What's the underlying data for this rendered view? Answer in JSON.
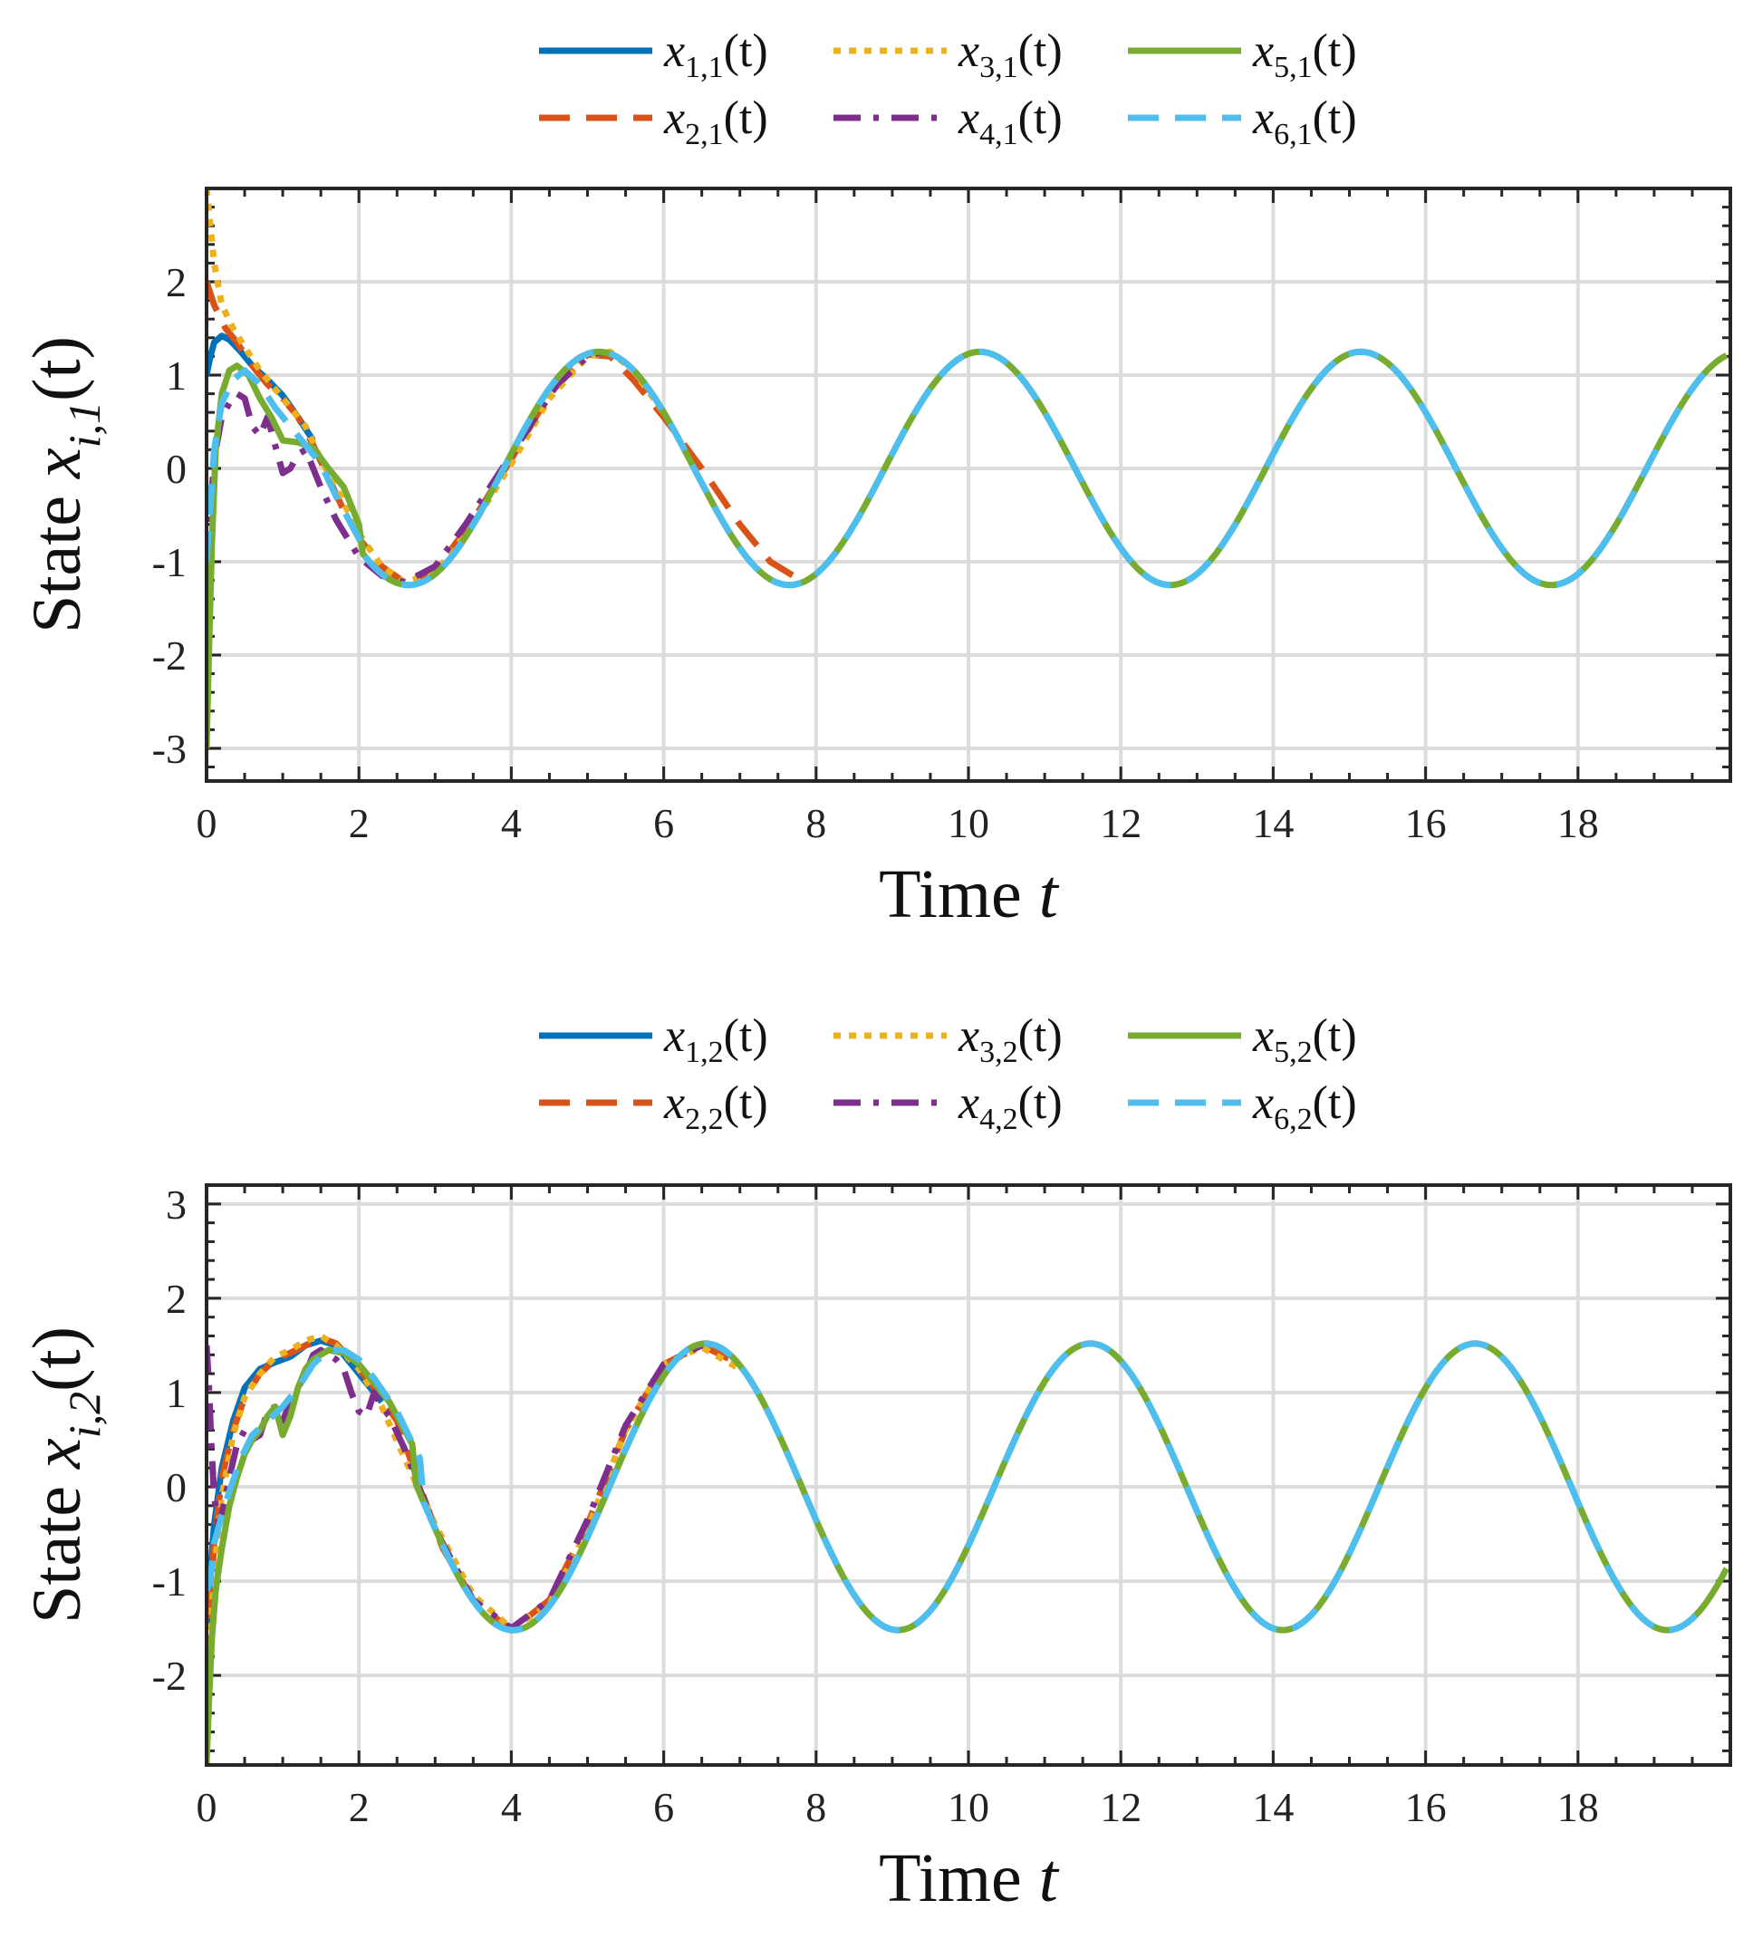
{
  "chart_data": [
    {
      "type": "line",
      "title": "",
      "xlabel": "Time",
      "xlabel_var": "t",
      "ylabel_prefix": "State ",
      "ylabel_var": "x",
      "ylabel_sub": "i,1",
      "ylabel_suffix": "(t)",
      "xlim": [
        0,
        20
      ],
      "ylim": [
        -3.35,
        3.0
      ],
      "xticks": [
        "0",
        "2",
        "4",
        "6",
        "8",
        "10",
        "12",
        "14",
        "16",
        "18"
      ],
      "yticks": [
        "-3",
        "-2",
        "-1",
        "0",
        "1",
        "2"
      ],
      "grid": true,
      "legend_position": "top-center",
      "series": [
        {
          "name": "x1,1(t)",
          "label_var": "x",
          "label_sub": "1,1",
          "label_arg": "(t)",
          "color": "#0072BD",
          "style": "solid",
          "x": [
            0,
            0.05,
            0.1,
            0.2,
            0.3,
            0.45,
            0.6,
            0.8,
            1.0,
            1.2,
            1.4
          ],
          "y": [
            1.0,
            1.2,
            1.35,
            1.42,
            1.38,
            1.25,
            1.1,
            0.95,
            0.78,
            0.55,
            0.3
          ]
        },
        {
          "name": "x2,1(t)",
          "label_var": "x",
          "label_sub": "2,1",
          "label_arg": "(t)",
          "color": "#D95319",
          "style": "dashed",
          "x": [
            0,
            0.1,
            0.25,
            0.4,
            0.6,
            0.8,
            1.0,
            1.2,
            1.4,
            1.6,
            1.8,
            2.0,
            2.3,
            2.6,
            3.0,
            3.5,
            4.0,
            4.5,
            5.0,
            5.3,
            5.6,
            6.0,
            6.5,
            7.0,
            7.4,
            7.8
          ],
          "y": [
            2.0,
            1.75,
            1.5,
            1.35,
            1.1,
            0.9,
            0.75,
            0.55,
            0.25,
            -0.1,
            -0.45,
            -0.75,
            -1.05,
            -1.22,
            -1.1,
            -0.55,
            0.1,
            0.8,
            1.22,
            1.2,
            0.95,
            0.55,
            0.0,
            -0.6,
            -1.0,
            -1.2
          ]
        },
        {
          "name": "x3,1(t)",
          "label_var": "x",
          "label_sub": "3,1",
          "label_arg": "(t)",
          "color": "#EDB120",
          "style": "dotted",
          "x": [
            0,
            0.05,
            0.1,
            0.2,
            0.35,
            0.5,
            0.7,
            0.9,
            1.1,
            1.3,
            1.5,
            1.7,
            2.0,
            2.3,
            2.6,
            3.0,
            3.5,
            4.0,
            4.5,
            5.0,
            5.3,
            5.6,
            6.0
          ],
          "y": [
            3.0,
            2.6,
            2.2,
            1.75,
            1.5,
            1.3,
            1.05,
            0.85,
            0.65,
            0.45,
            0.1,
            -0.2,
            -0.7,
            -1.05,
            -1.22,
            -1.12,
            -0.6,
            0.05,
            0.75,
            1.2,
            1.25,
            1.05,
            0.6
          ]
        },
        {
          "name": "x4,1(t)",
          "label_var": "x",
          "label_sub": "4,1",
          "label_arg": "(t)",
          "color": "#7E2F8E",
          "style": "dashdot",
          "x": [
            0,
            0.05,
            0.1,
            0.2,
            0.3,
            0.4,
            0.5,
            0.6,
            0.7,
            0.8,
            0.9,
            1.0,
            1.1,
            1.2,
            1.3,
            1.5,
            1.7,
            2.0,
            2.3,
            2.6,
            3.0,
            3.4,
            3.8,
            4.2,
            4.6,
            5.0,
            5.2
          ],
          "y": [
            -1.0,
            -0.5,
            0.1,
            0.55,
            0.7,
            0.8,
            0.75,
            0.45,
            0.35,
            0.55,
            0.25,
            -0.05,
            0.0,
            0.15,
            0.2,
            -0.2,
            -0.55,
            -0.95,
            -1.15,
            -1.22,
            -1.05,
            -0.6,
            -0.1,
            0.4,
            0.9,
            1.2,
            1.25
          ]
        }
      ],
      "common_x_start": 0,
      "common_x_end": 20,
      "common_period": 5.0,
      "common_amplitude": 1.25,
      "common_peak_time": 5.15,
      "initial_green": [
        [
          0,
          -3.0
        ],
        [
          0.03,
          -2.0
        ],
        [
          0.07,
          -0.8
        ],
        [
          0.12,
          0.2
        ],
        [
          0.2,
          0.8
        ],
        [
          0.3,
          1.05
        ],
        [
          0.4,
          1.1
        ],
        [
          0.55,
          1.0
        ],
        [
          0.7,
          0.75
        ],
        [
          0.85,
          0.55
        ],
        [
          1.0,
          0.3
        ],
        [
          1.2,
          0.28
        ],
        [
          1.4,
          0.22
        ],
        [
          1.6,
          0.0
        ],
        [
          1.8,
          -0.2
        ],
        [
          2.0,
          -0.6
        ]
      ],
      "initial_cyan": [
        [
          0,
          -1.0
        ],
        [
          0.05,
          -0.4
        ],
        [
          0.1,
          0.2
        ],
        [
          0.2,
          0.7
        ],
        [
          0.35,
          0.95
        ],
        [
          0.5,
          1.05
        ],
        [
          0.7,
          0.9
        ],
        [
          0.9,
          0.65
        ],
        [
          1.1,
          0.45
        ],
        [
          1.3,
          0.25
        ],
        [
          1.5,
          0.05
        ],
        [
          1.7,
          -0.3
        ],
        [
          2.0,
          -0.75
        ]
      ]
    },
    {
      "type": "line",
      "title": "",
      "xlabel": "Time",
      "xlabel_var": "t",
      "ylabel_prefix": "State ",
      "ylabel_var": "x",
      "ylabel_sub": "i,2",
      "ylabel_suffix": "(t)",
      "xlim": [
        0,
        20
      ],
      "ylim": [
        -2.95,
        3.2
      ],
      "xticks": [
        "0",
        "2",
        "4",
        "6",
        "8",
        "10",
        "12",
        "14",
        "16",
        "18"
      ],
      "yticks": [
        "-2",
        "-1",
        "0",
        "1",
        "2",
        "3"
      ],
      "grid": true,
      "legend_position": "top-center",
      "series": [
        {
          "name": "x1,2(t)",
          "label_var": "x",
          "label_sub": "1,2",
          "label_arg": "(t)",
          "color": "#0072BD",
          "style": "solid",
          "x": [
            0,
            0.05,
            0.1,
            0.2,
            0.35,
            0.5,
            0.7,
            0.9,
            1.1,
            1.3,
            1.5,
            1.7,
            1.9,
            2.1,
            2.3
          ],
          "y": [
            -1.5,
            -0.9,
            -0.4,
            0.2,
            0.7,
            1.05,
            1.25,
            1.32,
            1.38,
            1.5,
            1.55,
            1.5,
            1.3,
            1.1,
            0.9
          ]
        },
        {
          "name": "x2,2(t)",
          "label_var": "x",
          "label_sub": "2,2",
          "label_arg": "(t)",
          "color": "#D95319",
          "style": "dashed",
          "x": [
            0,
            0.05,
            0.1,
            0.2,
            0.35,
            0.5,
            0.7,
            0.9,
            1.1,
            1.3,
            1.5,
            1.7,
            1.9,
            2.2,
            2.5,
            2.8,
            3.1,
            3.5,
            4.0,
            4.5,
            5.0,
            5.5,
            6.0,
            6.5,
            7.0
          ],
          "y": [
            -1.9,
            -1.2,
            -0.6,
            0.1,
            0.6,
            0.95,
            1.2,
            1.35,
            1.42,
            1.5,
            1.58,
            1.52,
            1.35,
            1.05,
            0.7,
            0.0,
            -0.65,
            -1.2,
            -1.52,
            -1.2,
            -0.4,
            0.6,
            1.3,
            1.5,
            1.3
          ]
        },
        {
          "name": "x3,2(t)",
          "label_var": "x",
          "label_sub": "3,2",
          "label_arg": "(t)",
          "color": "#EDB120",
          "style": "dotted",
          "x": [
            0,
            0.05,
            0.1,
            0.2,
            0.35,
            0.5,
            0.7,
            0.9,
            1.1,
            1.3,
            1.5,
            1.7,
            2.0,
            2.3,
            2.6,
            3.0,
            3.5,
            4.0,
            4.5,
            5.0,
            5.5,
            6.0,
            6.5,
            7.0
          ],
          "y": [
            -2.5,
            -1.6,
            -0.9,
            -0.1,
            0.55,
            0.95,
            1.2,
            1.38,
            1.45,
            1.55,
            1.6,
            1.5,
            1.25,
            0.85,
            0.3,
            -0.4,
            -1.15,
            -1.5,
            -1.25,
            -0.45,
            0.6,
            1.3,
            1.48,
            1.25
          ]
        },
        {
          "name": "x4,2(t)",
          "label_var": "x",
          "label_sub": "4,2",
          "label_arg": "(t)",
          "color": "#7E2F8E",
          "style": "dashdot",
          "x": [
            0,
            0.03,
            0.06,
            0.1,
            0.15,
            0.2,
            0.3,
            0.4,
            0.5,
            0.6,
            0.7,
            0.8,
            0.9,
            1.0,
            1.1,
            1.2,
            1.3,
            1.4,
            1.5,
            1.6,
            1.7,
            1.8,
            1.9,
            2.0,
            2.1,
            2.2,
            2.3,
            2.4,
            2.6,
            3.0,
            3.5,
            4.0,
            4.5,
            5.0,
            5.5,
            6.0,
            6.5
          ],
          "y": [
            1.5,
            1.1,
            0.5,
            -0.1,
            -0.4,
            -0.3,
            0.1,
            0.45,
            0.6,
            0.5,
            0.55,
            0.8,
            0.85,
            0.7,
            0.9,
            1.05,
            1.2,
            1.4,
            1.45,
            1.4,
            1.35,
            1.25,
            1.0,
            0.8,
            0.75,
            1.0,
            0.85,
            0.75,
            0.4,
            -0.45,
            -1.2,
            -1.5,
            -1.2,
            -0.35,
            0.65,
            1.3,
            1.5
          ]
        }
      ],
      "common_x_start": 0,
      "common_x_end": 20,
      "common_period": 5.05,
      "common_amplitude": 1.52,
      "common_peak_time": 6.55,
      "initial_green": [
        [
          0,
          -2.95
        ],
        [
          0.03,
          -2.3
        ],
        [
          0.07,
          -1.6
        ],
        [
          0.12,
          -1.1
        ],
        [
          0.2,
          -0.65
        ],
        [
          0.3,
          -0.2
        ],
        [
          0.4,
          0.1
        ],
        [
          0.5,
          0.35
        ],
        [
          0.6,
          0.5
        ],
        [
          0.7,
          0.6
        ],
        [
          0.8,
          0.75
        ],
        [
          0.9,
          0.85
        ],
        [
          1.0,
          0.55
        ],
        [
          1.1,
          0.75
        ],
        [
          1.2,
          1.05
        ],
        [
          1.3,
          1.25
        ],
        [
          1.4,
          1.35
        ],
        [
          1.5,
          1.4
        ],
        [
          1.6,
          1.45
        ],
        [
          1.8,
          1.42
        ],
        [
          2.0,
          1.3
        ],
        [
          2.2,
          1.1
        ],
        [
          2.4,
          0.9
        ],
        [
          2.7,
          0.45
        ]
      ],
      "initial_cyan": [
        [
          0,
          -1.1
        ],
        [
          0.05,
          -1.0
        ],
        [
          0.1,
          -0.6
        ],
        [
          0.2,
          -0.3
        ],
        [
          0.3,
          -0.05
        ],
        [
          0.45,
          0.3
        ],
        [
          0.6,
          0.55
        ],
        [
          0.8,
          0.7
        ],
        [
          1.0,
          0.85
        ],
        [
          1.2,
          1.05
        ],
        [
          1.4,
          1.3
        ],
        [
          1.6,
          1.45
        ],
        [
          1.8,
          1.45
        ],
        [
          2.0,
          1.35
        ],
        [
          2.2,
          1.15
        ],
        [
          2.5,
          0.8
        ],
        [
          2.8,
          0.3
        ]
      ]
    }
  ]
}
